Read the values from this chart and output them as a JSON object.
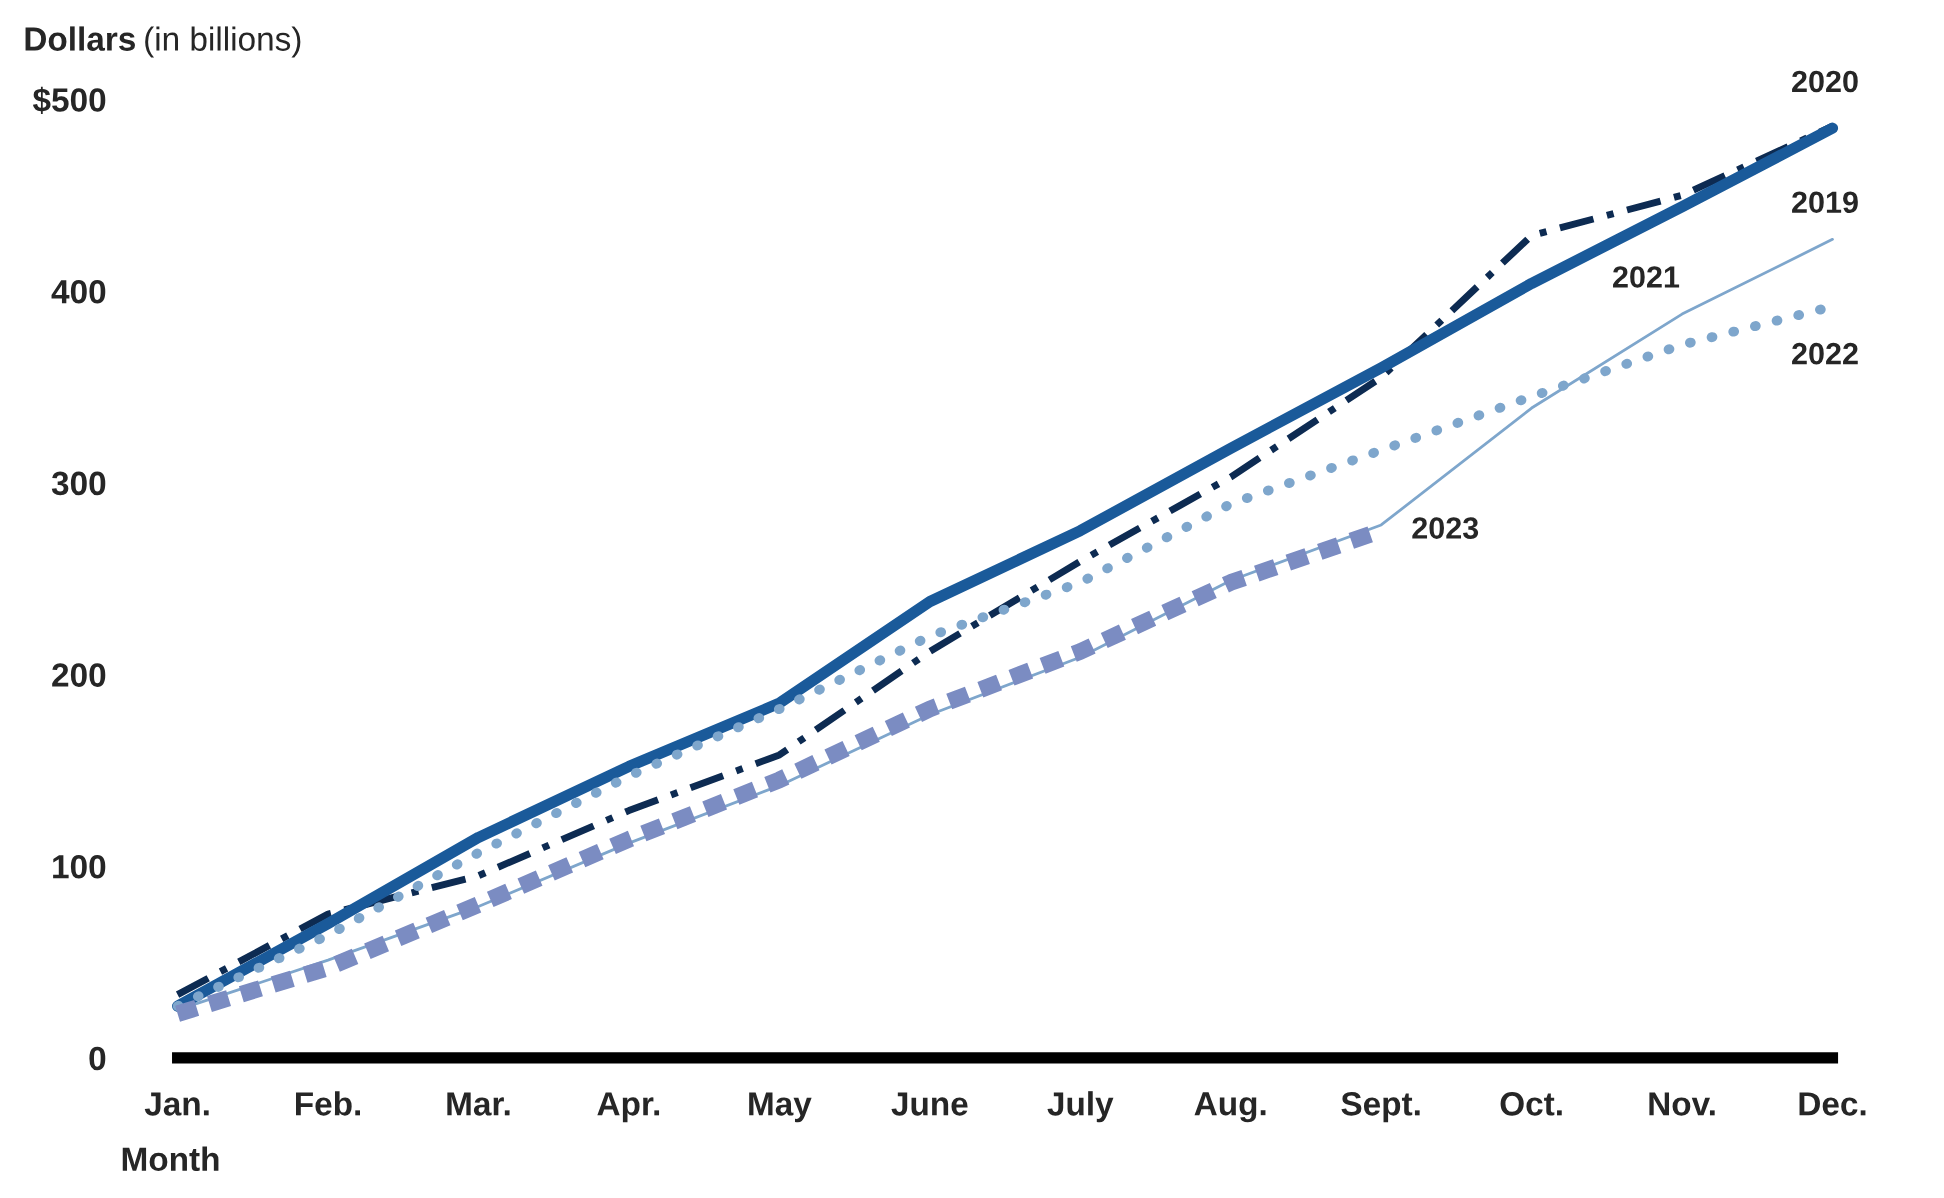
{
  "chart_data": {
    "type": "line",
    "ylabel": "Dollars (in billions)",
    "xlabel": "Month",
    "categories": [
      "Jan.",
      "Feb.",
      "Mar.",
      "Apr.",
      "May",
      "June",
      "July",
      "Aug.",
      "Sept.",
      "Oct.",
      "Nov.",
      "Dec."
    ],
    "ylim": [
      0,
      500
    ],
    "yticks": [
      0,
      100,
      200,
      300,
      400,
      {
        "value": 500,
        "label": "$500"
      }
    ],
    "grid": false,
    "legend": false,
    "marker": "none",
    "series": [
      {
        "name": "2019",
        "color": "#7ea6cc",
        "line_style": "solid",
        "values": [
          25,
          51,
          79,
          112,
          142,
          179,
          209,
          249,
          278,
          339,
          388,
          427
        ]
      },
      {
        "name": "2020",
        "color": "#0d2b52",
        "line_style": "dashdot",
        "values": [
          33,
          75,
          95,
          129,
          158,
          212,
          259,
          303,
          355,
          429,
          450,
          486
        ]
      },
      {
        "name": "2021",
        "color": "#1a5a9a",
        "line_style": "solid",
        "values": [
          27,
          70,
          115,
          152,
          185,
          238,
          275,
          318,
          360,
          404,
          444,
          485
        ]
      },
      {
        "name": "2022",
        "color": "#7ea6cc",
        "line_style": "dotted",
        "values": [
          27,
          64,
          107,
          147,
          182,
          220,
          248,
          289,
          317,
          345,
          372,
          392
        ]
      },
      {
        "name": "2023",
        "color": "#7b8cc2",
        "line_style": "dashed",
        "values": [
          23,
          47,
          80,
          114,
          145,
          182,
          212,
          248,
          275,
          null,
          null,
          null
        ]
      }
    ]
  }
}
